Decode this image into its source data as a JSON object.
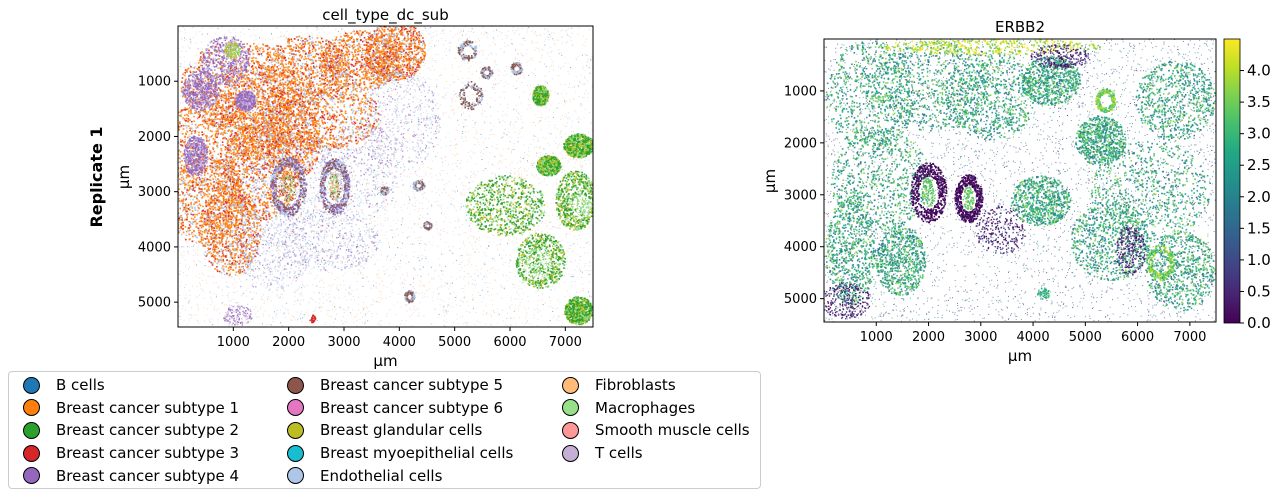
{
  "chart_data": [
    {
      "type": "scatter",
      "title": "cell_type_dc_sub",
      "xlabel": "µm",
      "ylabel": "µm",
      "row_label": "Replicate 1",
      "xlim": [
        0,
        7500
      ],
      "ylim": [
        5450,
        0
      ],
      "xticks": [
        1000,
        2000,
        3000,
        4000,
        5000,
        6000,
        7000
      ],
      "yticks": [
        1000,
        2000,
        3000,
        4000,
        5000
      ],
      "grid": false,
      "legend_position": "bottom-left",
      "legend": [
        {
          "name": "B cells",
          "color": "#1f77b4"
        },
        {
          "name": "Breast cancer subtype 1",
          "color": "#ff7f0e"
        },
        {
          "name": "Breast cancer subtype 2",
          "color": "#2ca02c"
        },
        {
          "name": "Breast cancer subtype 3",
          "color": "#d62728"
        },
        {
          "name": "Breast cancer subtype 4",
          "color": "#9467bd"
        },
        {
          "name": "Breast cancer subtype 5",
          "color": "#8c564b"
        },
        {
          "name": "Breast cancer subtype 6",
          "color": "#e377c2"
        },
        {
          "name": "Breast glandular cells",
          "color": "#bcbd22"
        },
        {
          "name": "Breast myoepithelial cells",
          "color": "#17becf"
        },
        {
          "name": "Endothelial cells",
          "color": "#aec7e8"
        },
        {
          "name": "Fibroblasts",
          "color": "#ffbb78"
        },
        {
          "name": "Macrophages",
          "color": "#98df8a"
        },
        {
          "name": "Smooth muscle cells",
          "color": "#ff9896"
        },
        {
          "name": "T cells",
          "color": "#c5b0d5"
        }
      ]
    },
    {
      "type": "scatter",
      "title": "ERBB2",
      "xlabel": "µm",
      "ylabel": "µm",
      "xlim": [
        0,
        7500
      ],
      "ylim": [
        5450,
        0
      ],
      "xticks": [
        1000,
        2000,
        3000,
        4000,
        5000,
        6000,
        7000
      ],
      "yticks": [
        1000,
        2000,
        3000,
        4000,
        5000
      ],
      "grid": false,
      "colormap": "viridis",
      "colorbar_range": [
        0,
        4.5
      ],
      "colorbar_ticks": [
        "0.0",
        "0.5",
        "1.0",
        "1.5",
        "2.0",
        "2.5",
        "3.0",
        "3.5",
        "4.0"
      ]
    }
  ]
}
